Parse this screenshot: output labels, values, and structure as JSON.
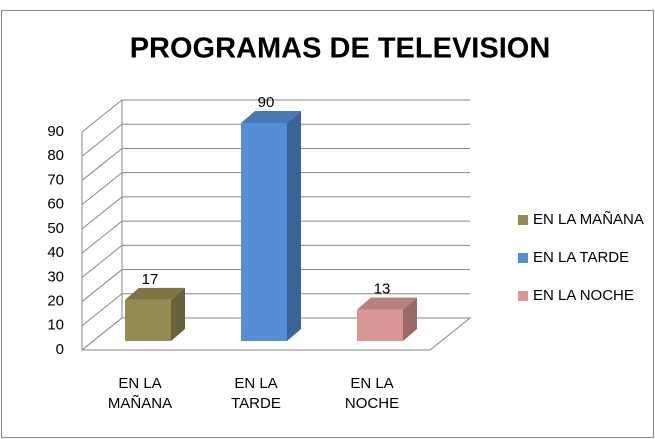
{
  "chart_data": {
    "type": "bar3d",
    "title": "PROGRAMAS DE TELEVISION",
    "categories": [
      "EN LA MAÑANA",
      "EN LA TARDE",
      "EN LA NOCHE"
    ],
    "values": [
      17,
      90,
      13
    ],
    "colors": [
      "#948a54",
      "#558ed5",
      "#d99694"
    ],
    "ylim": [
      0,
      90
    ],
    "yticks": [
      0,
      10,
      20,
      30,
      40,
      50,
      60,
      70,
      80,
      90
    ],
    "grid": true,
    "legend": "right"
  }
}
